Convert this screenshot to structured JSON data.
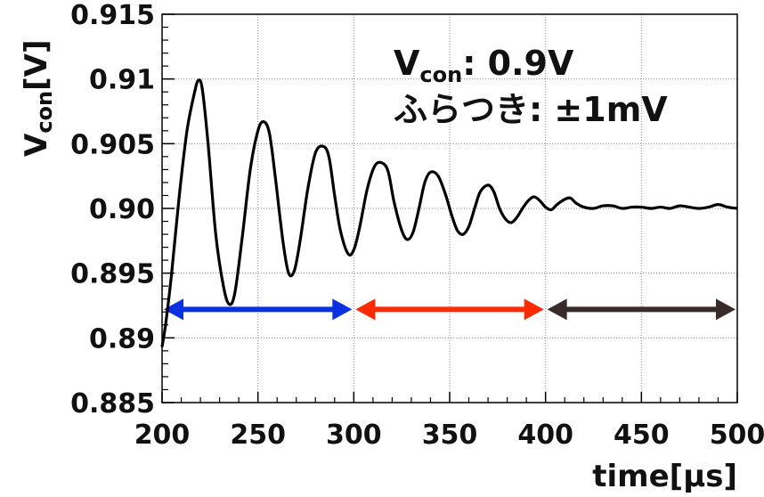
{
  "chart_data": {
    "type": "line",
    "xlabel": "time[µs]",
    "ylabel_main": "V",
    "ylabel_sub": "con",
    "ylabel_unit": "[V]",
    "xlim": [
      200,
      500
    ],
    "ylim": [
      0.885,
      0.915
    ],
    "x_ticks": [
      200,
      250,
      300,
      350,
      400,
      450,
      500
    ],
    "x_tick_labels": [
      "200",
      "250",
      "300",
      "350",
      "400",
      "450",
      "500"
    ],
    "y_ticks": [
      0.885,
      0.89,
      0.895,
      0.9,
      0.905,
      0.91,
      0.915
    ],
    "y_tick_labels": [
      "0.885",
      "0.89",
      "0.895",
      "0.90",
      "0.905",
      "0.91",
      "0.915"
    ],
    "grid": true,
    "annotation": {
      "line1_main": "V",
      "line1_sub": "con",
      "line1_rest": ": 0.9V",
      "line2": "ふらつき: ±1mV"
    },
    "series": [
      {
        "color": "#000000",
        "x": [
          200,
          202,
          205,
          209,
          213,
          217,
          219,
          221,
          224,
          228,
          232,
          235,
          238,
          242,
          246,
          250,
          253,
          256,
          259,
          263,
          266,
          269,
          272,
          276,
          280,
          284,
          287,
          290,
          293,
          297,
          300,
          303,
          307,
          311,
          315,
          318,
          321,
          325,
          328,
          331,
          334,
          337,
          340,
          344,
          348,
          351,
          354,
          357,
          360,
          363,
          366,
          370,
          373,
          376,
          379,
          382,
          385,
          388,
          391,
          394,
          397,
          400,
          403,
          406,
          410,
          413,
          416,
          420,
          425,
          430,
          435,
          440,
          445,
          450,
          455,
          460,
          465,
          470,
          475,
          480,
          485,
          490,
          495,
          500
        ],
        "y": [
          0.8893,
          0.8912,
          0.895,
          0.901,
          0.906,
          0.909,
          0.9099,
          0.9092,
          0.905,
          0.898,
          0.894,
          0.8926,
          0.8935,
          0.898,
          0.903,
          0.906,
          0.9067,
          0.9058,
          0.9025,
          0.8975,
          0.895,
          0.8952,
          0.8975,
          0.9015,
          0.9043,
          0.9048,
          0.904,
          0.901,
          0.8983,
          0.8965,
          0.8968,
          0.8985,
          0.9015,
          0.9033,
          0.9035,
          0.9028,
          0.9005,
          0.8983,
          0.8976,
          0.8982,
          0.9,
          0.902,
          0.9028,
          0.9025,
          0.901,
          0.8995,
          0.8983,
          0.898,
          0.8986,
          0.9,
          0.9013,
          0.9018,
          0.9013,
          0.9,
          0.8992,
          0.8989,
          0.8993,
          0.9,
          0.9006,
          0.9009,
          0.9006,
          0.9001,
          0.8999,
          0.9003,
          0.9007,
          0.9008,
          0.9004,
          0.9001,
          0.9,
          0.9002,
          0.9002,
          0.9,
          0.9001,
          0.9001,
          0.9,
          0.9001,
          0.9,
          0.9002,
          0.9001,
          0.9,
          0.9001,
          0.9003,
          0.9001,
          0.9
        ]
      }
    ],
    "arrows": [
      {
        "color": "#0a30e0",
        "x_start": 200,
        "x_end": 300,
        "y": 0.8922
      },
      {
        "color": "#ff2a00",
        "x_start": 300,
        "x_end": 400,
        "y": 0.8922
      },
      {
        "color": "#3a2b2b",
        "x_start": 400,
        "x_end": 500,
        "y": 0.8922
      }
    ]
  }
}
